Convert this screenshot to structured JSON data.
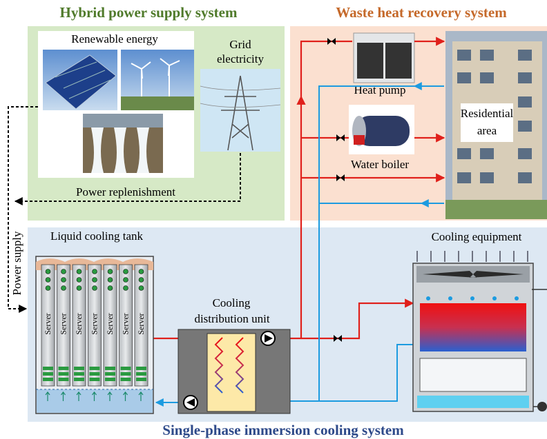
{
  "power": {
    "title": "Hybrid power supply system",
    "renewable": "Renewable energy",
    "grid": [
      "Grid",
      "electricity"
    ],
    "replenishment": "Power replenishment",
    "supply": "Power supply"
  },
  "heat": {
    "title": "Waste heat recovery system",
    "heat_pump": "Heat pump",
    "water_boiler": "Water boiler",
    "residential": [
      "Residential",
      "area"
    ]
  },
  "cooling": {
    "title": "Single-phase immersion cooling system",
    "tank": "Liquid cooling tank",
    "servers": [
      "Server",
      "Server",
      "Server",
      "Server",
      "Server",
      "Server",
      "Server"
    ],
    "cdu": [
      "Cooling",
      "distribution unit"
    ],
    "equipment": "Cooling equipment"
  }
}
